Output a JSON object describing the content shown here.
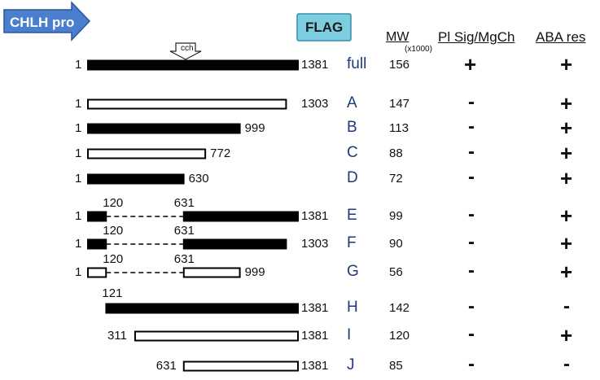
{
  "header": {
    "promoter": "CHLH pro",
    "tag": "FLAG",
    "mw": "MW",
    "mw_unit": "(x1000)",
    "col1": "Pl Sig/MgCh",
    "col2": "ABA res"
  },
  "cch_label": "cch",
  "colors": {
    "promoter_fill": "#4a7fcf",
    "promoter_stroke": "#2b5597",
    "flag_fill": "#7ccde0",
    "flag_stroke": "#3a8ea6",
    "label_text": "#1f3a78"
  },
  "rows": [
    {
      "name": "full",
      "start": "1",
      "end": "1381",
      "mw": "156",
      "plsig": "+",
      "aba": "+"
    },
    {
      "name": "A",
      "start": "1",
      "end": "1303",
      "mw": "147",
      "plsig": "-",
      "aba": "+"
    },
    {
      "name": "B",
      "start": "1",
      "end": "999",
      "mw": "113",
      "plsig": "-",
      "aba": "+"
    },
    {
      "name": "C",
      "start": "1",
      "end": "772",
      "mw": "88",
      "plsig": "-",
      "aba": "+"
    },
    {
      "name": "D",
      "start": "1",
      "end": "630",
      "mw": "72",
      "plsig": "-",
      "aba": "+"
    },
    {
      "name": "E",
      "start": "1",
      "end": "1381",
      "del_start": "120",
      "del_end": "631",
      "mw": "99",
      "plsig": "-",
      "aba": "+"
    },
    {
      "name": "F",
      "start": "1",
      "end": "1303",
      "del_start": "120",
      "del_end": "631",
      "mw": "90",
      "plsig": "-",
      "aba": "+"
    },
    {
      "name": "G",
      "start": "1",
      "end": "999",
      "del_start": "120",
      "del_end": "631",
      "mw": "56",
      "plsig": "-",
      "aba": "+"
    },
    {
      "name": "H",
      "start": "121",
      "end": "1381",
      "mw": "142",
      "plsig": "-",
      "aba": "-"
    },
    {
      "name": "I",
      "start": "311",
      "end": "1381",
      "mw": "120",
      "plsig": "-",
      "aba": "+"
    },
    {
      "name": "J",
      "start": "631",
      "end": "1381",
      "mw": "85",
      "plsig": "-",
      "aba": "-"
    }
  ]
}
